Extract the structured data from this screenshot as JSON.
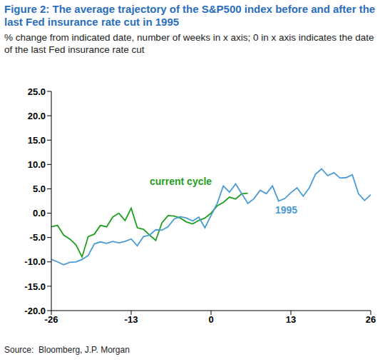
{
  "chart_data": {
    "type": "line",
    "title": "Figure 2: The average trajectory of the S&P500 index before and after the last Fed insurance rate cut in 1995",
    "subtitle": "% change from indicated date, number of weeks in x axis; 0 in x axis indicates the date of the last Fed insurance rate cut",
    "source": "Source:  Bloomberg, J.P. Morgan",
    "x": [
      -26,
      -25,
      -24,
      -23,
      -22,
      -21,
      -20,
      -19,
      -18,
      -17,
      -16,
      -15,
      -14,
      -13,
      -12,
      -11,
      -10,
      -9,
      -8,
      -7,
      -6,
      -5,
      -4,
      -3,
      -2,
      -1,
      0,
      1,
      2,
      3,
      4,
      5,
      6,
      7,
      8,
      9,
      10,
      11,
      12,
      13,
      14,
      15,
      16,
      17,
      18,
      19,
      20,
      21,
      22,
      23,
      24,
      25,
      26
    ],
    "series": [
      {
        "name": "current cycle",
        "color": "#1f9e1f",
        "values": [
          -2.8,
          -2.5,
          -4.5,
          -5.3,
          -6.5,
          -9.0,
          -4.8,
          -4.3,
          -2.5,
          -2.8,
          -0.8,
          0.0,
          -1.5,
          1.0,
          -3.0,
          -3.3,
          -4.5,
          -5.6,
          -2.0,
          -0.5,
          -0.6,
          -1.0,
          -1.8,
          -2.2,
          -1.5,
          -1.0,
          0.0,
          1.5,
          2.2,
          3.3,
          2.9,
          4.0,
          4.1,
          null,
          null,
          null,
          null,
          null,
          null,
          null,
          null,
          null,
          null,
          null,
          null,
          null,
          null,
          null,
          null,
          null,
          null,
          null,
          null
        ]
      },
      {
        "name": "1995",
        "color": "#4a9ad6",
        "values": [
          -9.5,
          -10.0,
          -10.6,
          -10.1,
          -10.0,
          -9.5,
          -8.7,
          -6.3,
          -5.9,
          -6.2,
          -5.8,
          -6.1,
          -5.8,
          -5.3,
          -6.7,
          -4.8,
          -4.5,
          -3.4,
          -3.5,
          -2.8,
          -1.2,
          -0.7,
          -1.0,
          -1.6,
          -0.8,
          -3.0,
          -0.5,
          2.0,
          5.6,
          4.3,
          6.0,
          4.0,
          2.0,
          3.0,
          4.7,
          4.0,
          5.6,
          2.5,
          3.0,
          4.2,
          5.2,
          3.5,
          5.2,
          8.0,
          9.1,
          7.7,
          8.3,
          7.2,
          7.3,
          7.9,
          4.0,
          2.6,
          3.8
        ]
      }
    ],
    "xlim": [
      -26,
      26
    ],
    "xticks": [
      -26,
      -13,
      0,
      13,
      26
    ],
    "ylim": [
      -20,
      25
    ],
    "yticks": [
      {
        "value": 25,
        "label": "25.0"
      },
      {
        "value": 20,
        "label": "20.0"
      },
      {
        "value": 15,
        "label": "15.0"
      },
      {
        "value": 10,
        "label": "10.0"
      },
      {
        "value": 5,
        "label": "5.0"
      },
      {
        "value": 0,
        "label": "0.0"
      },
      {
        "value": -5,
        "label": "-5.0"
      },
      {
        "value": -10,
        "label": "-10.0"
      },
      {
        "value": -15,
        "label": "-15.0"
      },
      {
        "value": -20,
        "label": "-20.0"
      }
    ],
    "grid": false
  }
}
